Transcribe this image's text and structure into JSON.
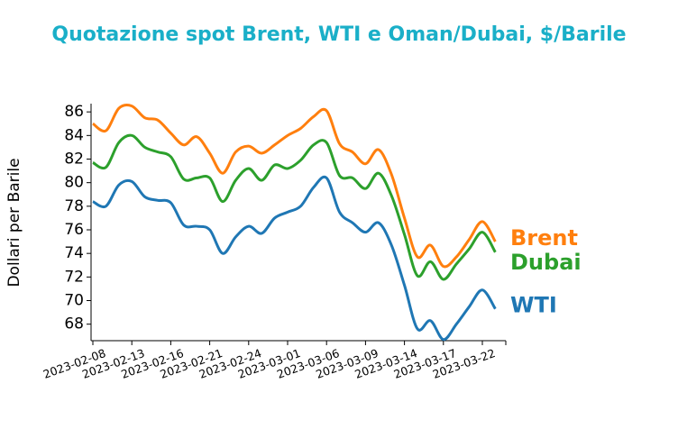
{
  "chart_data": {
    "type": "line",
    "title": "Quotazione spot Brent, WTI e Oman/Dubai, $/Barile",
    "y_label": "Dollari per Barile",
    "categories": [
      "2023-02-08",
      null,
      null,
      "2023-02-13",
      null,
      null,
      "2023-02-16",
      null,
      null,
      "2023-02-21",
      null,
      null,
      "2023-02-24",
      null,
      null,
      "2023-03-01",
      null,
      null,
      "2023-03-06",
      null,
      null,
      "2023-03-09",
      null,
      null,
      "2023-03-14",
      null,
      null,
      "2023-03-17",
      null,
      null,
      "2023-03-22",
      null
    ],
    "series": [
      {
        "name": "Brent",
        "color": "#ff7f0e",
        "values": [
          85.0,
          84.4,
          86.3,
          86.5,
          85.5,
          85.3,
          84.2,
          83.2,
          83.9,
          82.5,
          80.8,
          82.6,
          83.1,
          82.5,
          83.2,
          84.0,
          84.6,
          85.6,
          86.1,
          83.3,
          82.6,
          81.6,
          82.8,
          80.7,
          77.0,
          73.7,
          74.7,
          72.9,
          73.7,
          75.2,
          76.7,
          75.0
        ],
        "label_color": "#ff7f0e"
      },
      {
        "name": "Dubai",
        "color": "#2ca02c",
        "values": [
          81.7,
          81.3,
          83.4,
          84.0,
          83.0,
          82.6,
          82.2,
          80.3,
          80.4,
          80.4,
          78.4,
          80.2,
          81.2,
          80.2,
          81.5,
          81.2,
          81.9,
          83.2,
          83.4,
          80.6,
          80.4,
          79.5,
          80.8,
          78.9,
          75.6,
          72.1,
          73.3,
          71.8,
          73.1,
          74.4,
          75.8,
          74.1
        ]
      },
      {
        "name": "WTI",
        "color": "#1f77b4",
        "values": [
          78.4,
          78.0,
          79.8,
          80.1,
          78.8,
          78.5,
          78.3,
          76.4,
          76.3,
          76.0,
          74.0,
          75.4,
          76.3,
          75.7,
          77.0,
          77.5,
          78.0,
          79.6,
          80.4,
          77.5,
          76.6,
          75.8,
          76.6,
          74.7,
          71.3,
          67.6,
          68.3,
          66.7,
          68.0,
          69.5,
          70.9,
          69.3
        ]
      }
    ],
    "ylim": [
      66.6,
      86.7
    ],
    "yticks": [
      68,
      70,
      72,
      74,
      76,
      78,
      80,
      82,
      84,
      86
    ]
  }
}
